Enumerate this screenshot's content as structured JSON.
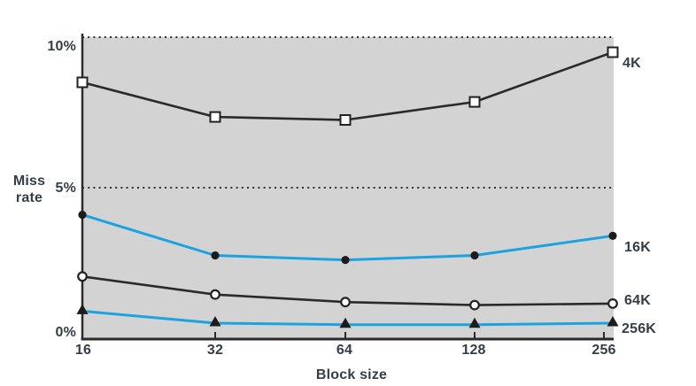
{
  "chart_data": {
    "type": "line",
    "title": "",
    "xlabel": "Block size",
    "ylabel": "Miss rate",
    "plot_background": "#d3d3d3",
    "axis_color": "#2a2a2a",
    "accent_blue": "#1da2e0",
    "x_axis": {
      "categories": [
        "16",
        "32",
        "64",
        "128",
        "256"
      ],
      "scale": "powers-of-two"
    },
    "y_axis": {
      "tick_labels_top_to_bottom": [
        "10%",
        "5%",
        "0%"
      ],
      "tick_values": [
        10,
        5,
        0
      ],
      "range": [
        0,
        10
      ],
      "unit": "percent"
    },
    "gridlines": {
      "style": "dotted",
      "at_values": [
        5,
        10
      ]
    },
    "legend_position": "right-of-lines",
    "series": [
      {
        "name": "4K",
        "color": "#2a2a2a",
        "marker": "open-square",
        "values": [
          8.5,
          7.35,
          7.25,
          7.85,
          9.5
        ]
      },
      {
        "name": "16K",
        "color": "#1da2e0",
        "marker": "filled-circle",
        "values": [
          4.1,
          2.75,
          2.6,
          2.75,
          3.4
        ]
      },
      {
        "name": "64K",
        "color": "#2a2a2a",
        "marker": "open-circle",
        "values": [
          2.05,
          1.45,
          1.2,
          1.1,
          1.15
        ]
      },
      {
        "name": "256K",
        "color": "#1da2e0",
        "marker": "filled-triangle",
        "values": [
          0.9,
          0.5,
          0.45,
          0.45,
          0.5
        ]
      }
    ]
  }
}
